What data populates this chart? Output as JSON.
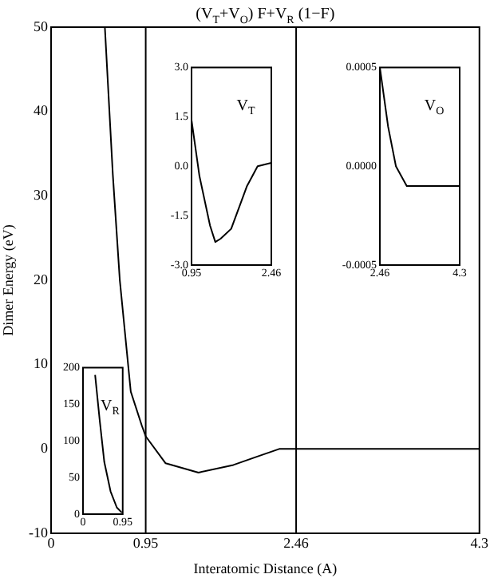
{
  "chart_data": [
    {
      "type": "line",
      "title": "(V$_{T}$+V$_{O}$) F+V$_{R}$ (1−F)",
      "xlabel": "Interatomic Distance (A)",
      "ylabel": "Dimer Energy (eV)",
      "xlim": [
        0,
        4.3
      ],
      "xticks": [
        0,
        0.95,
        2.46,
        4.3
      ],
      "ylim": [
        -10,
        50
      ],
      "yticks": [
        -10,
        0,
        10,
        20,
        30,
        40,
        50
      ],
      "marker": "none",
      "x": [
        0.54,
        0.62,
        0.69,
        0.8,
        0.91,
        0.95,
        1.15,
        1.48,
        1.83,
        2.07,
        2.29,
        2.46,
        4.3
      ],
      "series": [
        {
          "color": "#000000",
          "values": [
            50,
            32.5,
            20,
            6.8,
            2.8,
            1.5,
            -1.7,
            -2.8,
            -1.9,
            -0.9,
            0,
            0,
            0
          ]
        }
      ],
      "ref_lines": [
        {
          "axis": "x",
          "value": 0.95,
          "color": "#000000"
        },
        {
          "axis": "x",
          "value": 2.46,
          "color": "#000000"
        }
      ]
    },
    {
      "type": "line",
      "title": "V$_{T}$",
      "xlim": [
        0.95,
        2.46
      ],
      "xticks": [
        0.95,
        2.46
      ],
      "ylim": [
        -3,
        3
      ],
      "yticks": [
        {
          "value": -3,
          "label": "-3.0"
        },
        {
          "value": -1.5,
          "label": "-1.5"
        },
        {
          "value": 0,
          "label": "0.0"
        },
        {
          "value": 1.5,
          "label": "1.5"
        },
        {
          "value": 3,
          "label": "3.0"
        }
      ],
      "marker": "none",
      "x": [
        0.95,
        1.1,
        1.3,
        1.4,
        1.5,
        1.7,
        2.0,
        2.2,
        2.46
      ],
      "series": [
        {
          "color": "#000000",
          "values": [
            1.4,
            -0.3,
            -1.8,
            -2.3,
            -2.2,
            -1.9,
            -0.6,
            0,
            0.1
          ]
        }
      ]
    },
    {
      "type": "line",
      "title": "V$_{O}$",
      "xlim": [
        2.46,
        4.3
      ],
      "xticks": [
        2.46,
        4.3
      ],
      "ylim": [
        -0.0005,
        0.0005
      ],
      "yticks": [
        {
          "value": -0.0005,
          "label": "-0.0005"
        },
        {
          "value": 0,
          "label": "0.0000"
        },
        {
          "value": 0.0005,
          "label": "0.0005"
        }
      ],
      "marker": "none",
      "x": [
        2.46,
        2.65,
        2.83,
        3.08,
        3.33,
        4.3
      ],
      "series": [
        {
          "color": "#000000",
          "values": [
            0.0005,
            0.0002,
            0,
            -0.0001,
            -0.0001,
            -0.0001
          ]
        }
      ]
    },
    {
      "type": "line",
      "title": "V$_{R}$",
      "xlim": [
        0,
        0.95
      ],
      "xticks": [
        0,
        0.95
      ],
      "ylim": [
        0,
        200
      ],
      "yticks": [
        0,
        50,
        100,
        150,
        200
      ],
      "marker": "none",
      "x": [
        0.29,
        0.4,
        0.51,
        0.66,
        0.81,
        0.93
      ],
      "series": [
        {
          "color": "#000000",
          "values": [
            190,
            128,
            71,
            31,
            9,
            2
          ]
        }
      ]
    }
  ]
}
